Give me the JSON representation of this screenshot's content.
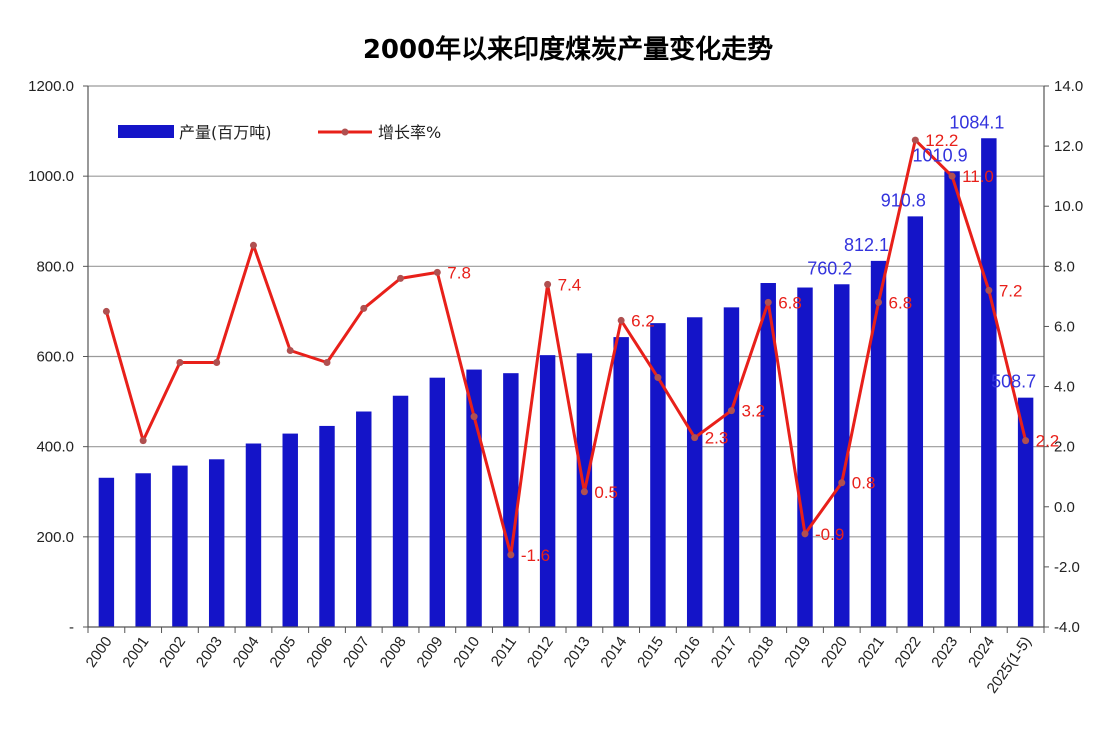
{
  "chart_data": {
    "type": "bar",
    "title": "2000年以来印度煤炭产量变化走势",
    "categories": [
      "2000",
      "2001",
      "2002",
      "2003",
      "2004",
      "2005",
      "2006",
      "2007",
      "2008",
      "2009",
      "2010",
      "2011",
      "2012",
      "2013",
      "2014",
      "2015",
      "2016",
      "2017",
      "2018",
      "2019",
      "2020",
      "2021",
      "2022",
      "2023",
      "2024",
      "2025(1-5)"
    ],
    "series": [
      {
        "name": "产量(百万吨)",
        "type": "bar",
        "axis": "left",
        "color": "#1414c8",
        "values": [
          331,
          341,
          358,
          372,
          407,
          429,
          446,
          478,
          513,
          553,
          571,
          563,
          603,
          607,
          643,
          674,
          687,
          709,
          763,
          753,
          760.2,
          812.1,
          910.8,
          1010.9,
          1084.1,
          508.7
        ],
        "labeled": [
          false,
          false,
          false,
          false,
          false,
          false,
          false,
          false,
          false,
          false,
          false,
          false,
          false,
          false,
          false,
          false,
          false,
          false,
          false,
          false,
          true,
          true,
          true,
          true,
          true,
          true
        ],
        "label_text": [
          "",
          "",
          "",
          "",
          "",
          "",
          "",
          "",
          "",
          "",
          "",
          "",
          "",
          "",
          "",
          "",
          "",
          "",
          "",
          "",
          "760.2",
          "812.1",
          "910.8",
          "1010.9",
          "1084.1",
          "508.7"
        ]
      },
      {
        "name": "增长率%",
        "type": "line",
        "axis": "right",
        "color": "#e8201a",
        "values": [
          6.5,
          2.2,
          4.8,
          4.8,
          8.7,
          5.2,
          4.8,
          6.6,
          7.6,
          7.8,
          3.0,
          -1.6,
          7.4,
          0.5,
          6.2,
          4.3,
          2.3,
          3.2,
          6.8,
          -0.9,
          0.8,
          6.8,
          12.2,
          11.0,
          7.2,
          2.2
        ],
        "labeled": [
          false,
          false,
          false,
          false,
          false,
          false,
          false,
          false,
          false,
          true,
          false,
          true,
          true,
          true,
          true,
          false,
          true,
          true,
          true,
          true,
          true,
          true,
          true,
          true,
          true,
          true
        ],
        "label_text": [
          "",
          "",
          "",
          "",
          "",
          "",
          "",
          "",
          "",
          "7.8",
          "",
          "-1.6",
          "7.4",
          "0.5",
          "6.2",
          "",
          "2.3",
          "3.2",
          "6.8",
          "-0.9",
          "0.8",
          "6.8",
          "12.2",
          "11.0",
          "7.2",
          "2.2"
        ]
      }
    ],
    "y_left": {
      "min": 0,
      "max": 1200,
      "ticks": [
        "-",
        "200.0",
        "400.0",
        "600.0",
        "800.0",
        "1000.0",
        "1200.0"
      ]
    },
    "y_right": {
      "min": -4,
      "max": 14,
      "ticks": [
        "-4.0",
        "-2.0",
        "0.0",
        "2.0",
        "4.0",
        "6.0",
        "8.0",
        "10.0",
        "12.0",
        "14.0"
      ]
    },
    "grid": true,
    "legend_position": "top-left"
  }
}
